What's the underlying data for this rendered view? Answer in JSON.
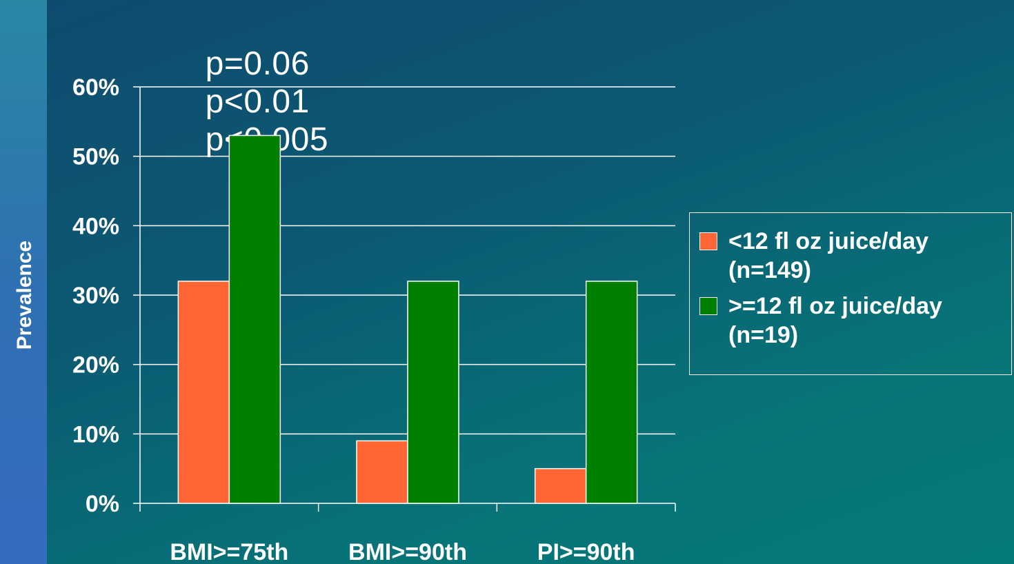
{
  "chart_data": {
    "type": "bar",
    "ylabel": "Prevalence",
    "xlabel": "",
    "title": "",
    "annotations": [
      "p=0.06",
      "p<0.01",
      "p<0.005"
    ],
    "categories": [
      "BMI>=75th",
      "BMI>=90th",
      "PI>=90th"
    ],
    "ylim": [
      0,
      60
    ],
    "yticks": [
      "0%",
      "10%",
      "20%",
      "30%",
      "40%",
      "50%",
      "60%"
    ],
    "grid": true,
    "legend_position": "right",
    "series": [
      {
        "name": "<12 fl oz juice/day (n=149)",
        "legend_lines": [
          "<12 fl oz juice/day",
          "(n=149)"
        ],
        "color": "#ff6633",
        "values": [
          32,
          9,
          5
        ]
      },
      {
        "name": ">=12 fl oz juice/day (n=19)",
        "legend_lines": [
          ">=12 fl oz juice/day",
          "(n=19)"
        ],
        "color": "#008000",
        "values": [
          53,
          32,
          32
        ]
      }
    ]
  }
}
